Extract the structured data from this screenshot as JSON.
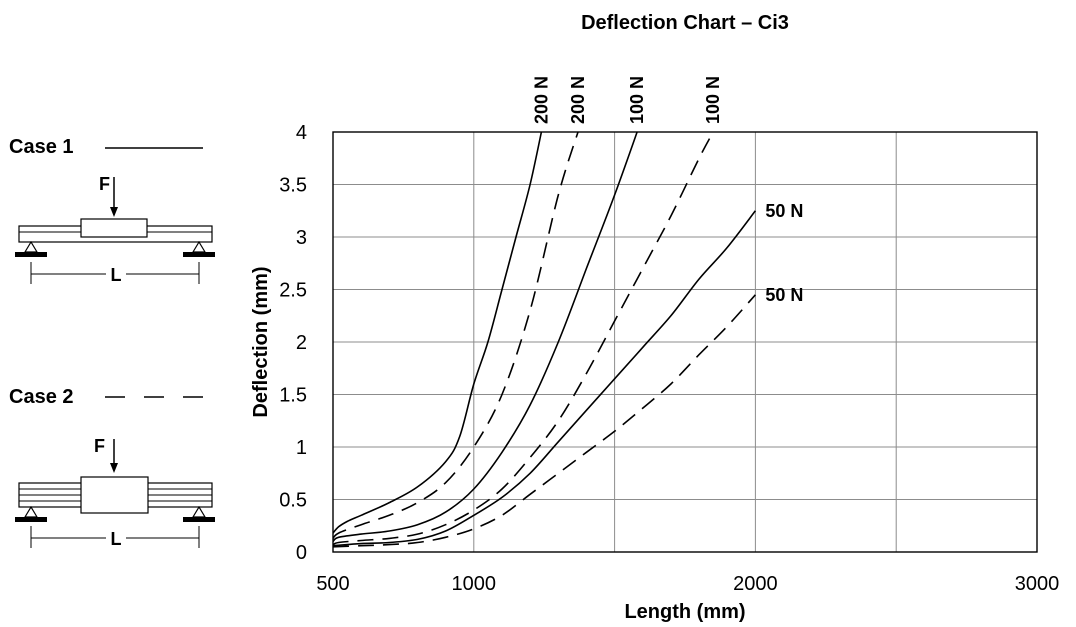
{
  "chart_data": {
    "type": "line",
    "title": "Deflection Chart – Ci3",
    "xlabel": "Length (mm)",
    "ylabel": "Deflection (mm)",
    "xlim": [
      500,
      3000
    ],
    "ylim": [
      0,
      4
    ],
    "grid": true,
    "x_ticks": [
      "500",
      "1000",
      "1500",
      "2000",
      "2500",
      "3000"
    ],
    "x_tick_values": [
      500,
      1000,
      1500,
      2000,
      2500,
      3000
    ],
    "x_tick_labels_shown": [
      "500",
      "1000",
      "2000",
      "3000"
    ],
    "y_ticks": [
      "0",
      "0.5",
      "1",
      "1.5",
      "2",
      "2.5",
      "3",
      "3.5",
      "4"
    ],
    "y_tick_values": [
      0,
      0.5,
      1,
      1.5,
      2,
      2.5,
      3,
      3.5,
      4
    ],
    "series": [
      {
        "name": "200 N",
        "case": 1,
        "style": "solid",
        "x": [
          500,
          520,
          550,
          600,
          700,
          800,
          900,
          950,
          1000,
          1050,
          1100,
          1150,
          1200,
          1240
        ],
        "y": [
          0.18,
          0.24,
          0.29,
          0.35,
          0.47,
          0.62,
          0.86,
          1.1,
          1.6,
          2.0,
          2.5,
          3.0,
          3.5,
          4.0
        ]
      },
      {
        "name": "200 N",
        "case": 2,
        "style": "dashed",
        "x": [
          500,
          520,
          600,
          700,
          800,
          900,
          1000,
          1100,
          1200,
          1300,
          1370
        ],
        "y": [
          0.13,
          0.18,
          0.26,
          0.35,
          0.47,
          0.66,
          1.0,
          1.5,
          2.3,
          3.4,
          4.0
        ]
      },
      {
        "name": "100 N",
        "case": 1,
        "style": "solid",
        "x": [
          500,
          520,
          600,
          700,
          800,
          900,
          1000,
          1100,
          1200,
          1300,
          1400,
          1500,
          1580
        ],
        "y": [
          0.1,
          0.14,
          0.17,
          0.2,
          0.26,
          0.38,
          0.6,
          0.95,
          1.4,
          2.0,
          2.7,
          3.4,
          4.0
        ]
      },
      {
        "name": "100 N",
        "case": 2,
        "style": "dashed",
        "x": [
          500,
          520,
          600,
          700,
          800,
          900,
          1000,
          1100,
          1200,
          1300,
          1400,
          1500,
          1600,
          1700,
          1800,
          1850
        ],
        "y": [
          0.07,
          0.09,
          0.11,
          0.13,
          0.17,
          0.26,
          0.4,
          0.6,
          0.9,
          1.25,
          1.7,
          2.2,
          2.7,
          3.2,
          3.75,
          4.0
        ]
      },
      {
        "name": "50 N",
        "case": 1,
        "style": "solid",
        "x": [
          500,
          600,
          700,
          800,
          900,
          1000,
          1100,
          1200,
          1300,
          1400,
          1500,
          1600,
          1700,
          1800,
          1900,
          2000
        ],
        "y": [
          0.06,
          0.08,
          0.09,
          0.12,
          0.2,
          0.35,
          0.52,
          0.75,
          1.05,
          1.35,
          1.65,
          1.95,
          2.25,
          2.6,
          2.9,
          3.25
        ]
      },
      {
        "name": "50 N",
        "case": 2,
        "style": "dashed",
        "x": [
          500,
          600,
          700,
          800,
          900,
          1000,
          1100,
          1200,
          1300,
          1400,
          1500,
          1600,
          1700,
          1800,
          1900,
          2000
        ],
        "y": [
          0.05,
          0.06,
          0.07,
          0.09,
          0.14,
          0.22,
          0.35,
          0.55,
          0.75,
          0.95,
          1.15,
          1.37,
          1.6,
          1.88,
          2.15,
          2.45
        ]
      }
    ],
    "legend": {
      "case1_label": "Case 1",
      "case2_label": "Case 2",
      "force_label": "F",
      "length_label": "L"
    }
  }
}
